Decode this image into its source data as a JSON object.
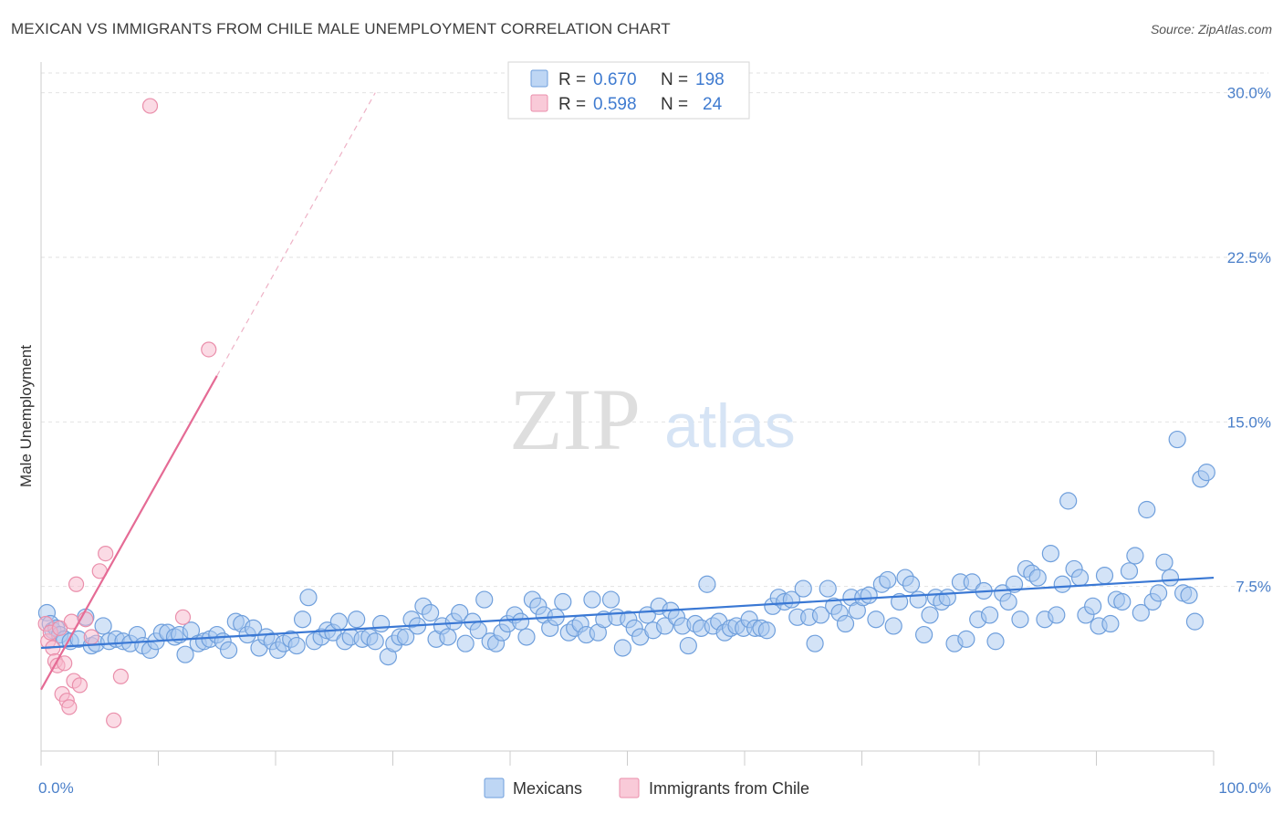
{
  "header": {
    "title": "MEXICAN VS IMMIGRANTS FROM CHILE MALE UNEMPLOYMENT CORRELATION CHART",
    "source": "Source: ZipAtlas.com"
  },
  "watermark": {
    "zip": "ZIP",
    "atlas": "atlas"
  },
  "legend": {
    "rows": [
      {
        "r_label": "R =",
        "r_value": "0.670",
        "n_label": "N =",
        "n_value": "198"
      },
      {
        "r_label": "R =",
        "r_value": "0.598",
        "n_label": "N =",
        "n_value": "24"
      }
    ]
  },
  "bottom_legend": {
    "mexicans": "Mexicans",
    "chile": "Immigrants from Chile"
  },
  "colors": {
    "mexicans_fill": "#a8c8f0",
    "mexicans_stroke": "#6f9fdc",
    "mexicans_line": "#3a78d4",
    "chile_fill": "#f7b8cb",
    "chile_stroke": "#ea8fab",
    "chile_line": "#e56b95",
    "tick_text": "#4a7fc9",
    "grid": "#e2e2e2"
  },
  "chart_data": {
    "type": "scatter",
    "title": "MEXICAN VS IMMIGRANTS FROM CHILE MALE UNEMPLOYMENT CORRELATION CHART",
    "xlabel": "",
    "ylabel": "Male Unemployment",
    "xlim": [
      0,
      100
    ],
    "ylim": [
      0,
      30.9
    ],
    "y_ticks": [
      {
        "value": 7.5,
        "label": "7.5%"
      },
      {
        "value": 15.0,
        "label": "15.0%"
      },
      {
        "value": 22.5,
        "label": "22.5%"
      },
      {
        "value": 30.0,
        "label": "30.0%"
      }
    ],
    "x_ticks": [
      {
        "value": 0,
        "label": "0.0%"
      },
      {
        "value": 100,
        "label": "100.0%"
      }
    ],
    "grid": true,
    "legend_position": "top-center",
    "series": [
      {
        "name": "Mexicans",
        "R": 0.67,
        "N": 198,
        "trend": {
          "x": [
            0,
            100
          ],
          "y": [
            4.7,
            7.9
          ]
        },
        "points": [
          [
            0.5,
            6.3
          ],
          [
            0.8,
            5.8
          ],
          [
            1.0,
            5.5
          ],
          [
            1.3,
            5.6
          ],
          [
            1.6,
            5.3
          ],
          [
            2.0,
            5.1
          ],
          [
            2.5,
            5.0
          ],
          [
            3.2,
            5.1
          ],
          [
            3.8,
            6.1
          ],
          [
            4.3,
            4.8
          ],
          [
            4.7,
            4.9
          ],
          [
            5.3,
            5.7
          ],
          [
            5.8,
            5.0
          ],
          [
            6.4,
            5.1
          ],
          [
            7.0,
            5.0
          ],
          [
            7.6,
            4.9
          ],
          [
            8.2,
            5.3
          ],
          [
            8.7,
            4.8
          ],
          [
            9.3,
            4.6
          ],
          [
            9.8,
            5.0
          ],
          [
            10.3,
            5.4
          ],
          [
            10.8,
            5.4
          ],
          [
            11.4,
            5.2
          ],
          [
            11.8,
            5.3
          ],
          [
            12.3,
            4.4
          ],
          [
            12.8,
            5.5
          ],
          [
            13.4,
            4.9
          ],
          [
            13.9,
            5.0
          ],
          [
            14.4,
            5.1
          ],
          [
            15.0,
            5.3
          ],
          [
            15.5,
            5.0
          ],
          [
            16.0,
            4.6
          ],
          [
            16.6,
            5.9
          ],
          [
            17.1,
            5.8
          ],
          [
            17.6,
            5.3
          ],
          [
            18.1,
            5.6
          ],
          [
            18.6,
            4.7
          ],
          [
            19.2,
            5.2
          ],
          [
            19.7,
            5.0
          ],
          [
            20.2,
            4.6
          ],
          [
            20.7,
            4.9
          ],
          [
            21.3,
            5.1
          ],
          [
            21.8,
            4.8
          ],
          [
            22.3,
            6.0
          ],
          [
            22.8,
            7.0
          ],
          [
            23.3,
            5.0
          ],
          [
            23.9,
            5.2
          ],
          [
            24.4,
            5.5
          ],
          [
            24.9,
            5.4
          ],
          [
            25.4,
            5.9
          ],
          [
            25.9,
            5.0
          ],
          [
            26.4,
            5.2
          ],
          [
            26.9,
            6.0
          ],
          [
            27.4,
            5.1
          ],
          [
            28.0,
            5.2
          ],
          [
            28.5,
            5.0
          ],
          [
            29.0,
            5.8
          ],
          [
            29.6,
            4.3
          ],
          [
            30.1,
            4.9
          ],
          [
            30.6,
            5.2
          ],
          [
            31.1,
            5.2
          ],
          [
            31.6,
            6.0
          ],
          [
            32.1,
            5.7
          ],
          [
            32.6,
            6.6
          ],
          [
            33.2,
            6.3
          ],
          [
            33.7,
            5.1
          ],
          [
            34.2,
            5.7
          ],
          [
            34.7,
            5.2
          ],
          [
            35.2,
            5.9
          ],
          [
            35.7,
            6.3
          ],
          [
            36.2,
            4.9
          ],
          [
            36.8,
            5.9
          ],
          [
            37.3,
            5.5
          ],
          [
            37.8,
            6.9
          ],
          [
            38.3,
            5.0
          ],
          [
            38.8,
            4.9
          ],
          [
            39.3,
            5.4
          ],
          [
            39.8,
            5.8
          ],
          [
            40.4,
            6.2
          ],
          [
            40.9,
            5.9
          ],
          [
            41.4,
            5.2
          ],
          [
            41.9,
            6.9
          ],
          [
            42.4,
            6.6
          ],
          [
            42.9,
            6.2
          ],
          [
            43.4,
            5.6
          ],
          [
            43.9,
            6.1
          ],
          [
            44.5,
            6.8
          ],
          [
            45.0,
            5.4
          ],
          [
            45.5,
            5.6
          ],
          [
            46.0,
            5.8
          ],
          [
            46.5,
            5.3
          ],
          [
            47.0,
            6.9
          ],
          [
            47.5,
            5.4
          ],
          [
            48.0,
            6.0
          ],
          [
            48.6,
            6.9
          ],
          [
            49.1,
            6.1
          ],
          [
            49.6,
            4.7
          ],
          [
            50.1,
            6.0
          ],
          [
            50.6,
            5.6
          ],
          [
            51.1,
            5.2
          ],
          [
            51.7,
            6.2
          ],
          [
            52.2,
            5.5
          ],
          [
            52.7,
            6.6
          ],
          [
            53.2,
            5.7
          ],
          [
            53.7,
            6.4
          ],
          [
            54.2,
            6.1
          ],
          [
            54.7,
            5.7
          ],
          [
            55.2,
            4.8
          ],
          [
            55.8,
            5.8
          ],
          [
            56.3,
            5.6
          ],
          [
            56.8,
            7.6
          ],
          [
            57.3,
            5.7
          ],
          [
            57.8,
            5.9
          ],
          [
            58.3,
            5.4
          ],
          [
            58.8,
            5.6
          ],
          [
            59.3,
            5.7
          ],
          [
            59.9,
            5.6
          ],
          [
            60.4,
            6.0
          ],
          [
            60.9,
            5.6
          ],
          [
            61.4,
            5.6
          ],
          [
            61.9,
            5.5
          ],
          [
            62.4,
            6.6
          ],
          [
            62.9,
            7.0
          ],
          [
            63.4,
            6.8
          ],
          [
            64.0,
            6.9
          ],
          [
            64.5,
            6.1
          ],
          [
            65.0,
            7.4
          ],
          [
            65.5,
            6.1
          ],
          [
            66.0,
            4.9
          ],
          [
            66.5,
            6.2
          ],
          [
            67.1,
            7.4
          ],
          [
            67.6,
            6.6
          ],
          [
            68.1,
            6.3
          ],
          [
            68.6,
            5.8
          ],
          [
            69.1,
            7.0
          ],
          [
            69.6,
            6.4
          ],
          [
            70.1,
            7.0
          ],
          [
            70.6,
            7.1
          ],
          [
            71.2,
            6.0
          ],
          [
            71.7,
            7.6
          ],
          [
            72.2,
            7.8
          ],
          [
            72.7,
            5.7
          ],
          [
            73.2,
            6.8
          ],
          [
            73.7,
            7.9
          ],
          [
            74.2,
            7.6
          ],
          [
            74.8,
            6.9
          ],
          [
            75.3,
            5.3
          ],
          [
            75.8,
            6.2
          ],
          [
            76.3,
            7.0
          ],
          [
            76.8,
            6.8
          ],
          [
            77.3,
            7.0
          ],
          [
            77.9,
            4.9
          ],
          [
            78.4,
            7.7
          ],
          [
            78.9,
            5.1
          ],
          [
            79.4,
            7.7
          ],
          [
            79.9,
            6.0
          ],
          [
            80.4,
            7.3
          ],
          [
            80.9,
            6.2
          ],
          [
            81.4,
            5.0
          ],
          [
            82.0,
            7.2
          ],
          [
            82.5,
            6.8
          ],
          [
            83.0,
            7.6
          ],
          [
            83.5,
            6.0
          ],
          [
            84.0,
            8.3
          ],
          [
            84.5,
            8.1
          ],
          [
            85.0,
            7.9
          ],
          [
            85.6,
            6.0
          ],
          [
            86.1,
            9.0
          ],
          [
            86.6,
            6.2
          ],
          [
            87.1,
            7.6
          ],
          [
            87.6,
            11.4
          ],
          [
            88.1,
            8.3
          ],
          [
            88.6,
            7.9
          ],
          [
            89.1,
            6.2
          ],
          [
            89.7,
            6.6
          ],
          [
            90.2,
            5.7
          ],
          [
            90.7,
            8.0
          ],
          [
            91.2,
            5.8
          ],
          [
            91.7,
            6.9
          ],
          [
            92.2,
            6.8
          ],
          [
            92.8,
            8.2
          ],
          [
            93.3,
            8.9
          ],
          [
            93.8,
            6.3
          ],
          [
            94.3,
            11.0
          ],
          [
            94.8,
            6.8
          ],
          [
            95.3,
            7.2
          ],
          [
            95.8,
            8.6
          ],
          [
            96.3,
            7.9
          ],
          [
            96.9,
            14.2
          ],
          [
            97.4,
            7.2
          ],
          [
            97.9,
            7.1
          ],
          [
            98.4,
            5.9
          ],
          [
            98.9,
            12.4
          ],
          [
            99.4,
            12.7
          ]
        ]
      },
      {
        "name": "Immigrants from Chile",
        "R": 0.598,
        "N": 24,
        "trend": {
          "x": [
            0,
            15.0
          ],
          "y": [
            2.8,
            17.1
          ]
        },
        "trend_dashed": {
          "x": [
            15.0,
            28.5
          ],
          "y": [
            17.1,
            30.0
          ]
        },
        "points": [
          [
            0.4,
            5.8
          ],
          [
            0.6,
            5.0
          ],
          [
            0.8,
            5.4
          ],
          [
            1.0,
            4.7
          ],
          [
            1.2,
            4.1
          ],
          [
            1.4,
            3.9
          ],
          [
            1.6,
            5.6
          ],
          [
            1.8,
            2.6
          ],
          [
            2.0,
            4.0
          ],
          [
            2.2,
            2.3
          ],
          [
            2.4,
            2.0
          ],
          [
            2.6,
            5.9
          ],
          [
            2.8,
            3.2
          ],
          [
            3.0,
            7.6
          ],
          [
            3.3,
            3.0
          ],
          [
            3.8,
            6.0
          ],
          [
            4.3,
            5.2
          ],
          [
            5.0,
            8.2
          ],
          [
            5.5,
            9.0
          ],
          [
            6.2,
            1.4
          ],
          [
            6.8,
            3.4
          ],
          [
            9.3,
            29.4
          ],
          [
            12.1,
            6.1
          ],
          [
            14.3,
            18.3
          ]
        ]
      }
    ]
  }
}
